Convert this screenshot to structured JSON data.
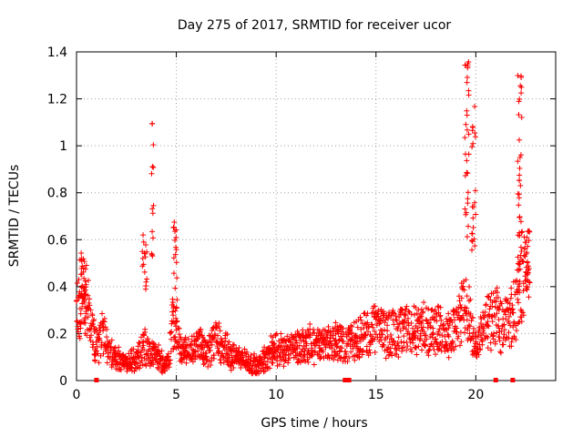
{
  "chart_data": {
    "type": "scatter",
    "title": "Day 275 of 2017, SRMTID for receiver ucor",
    "xlabel": "GPS time / hours",
    "ylabel": "SRMTID / TECUs",
    "xlim": [
      0,
      24
    ],
    "ylim": [
      0,
      1.4
    ],
    "grid": true,
    "marker": "+",
    "color": "#ff0000",
    "x_ticks": [
      0,
      5,
      10,
      15,
      20
    ],
    "x_tick_labels": [
      "0",
      "5",
      "10",
      "15",
      "20"
    ],
    "y_ticks": [
      0,
      0.2,
      0.4,
      0.6,
      0.8,
      1,
      1.2,
      1.4
    ],
    "y_tick_labels": [
      "0",
      "0.2",
      "0.4",
      "0.6",
      "0.8",
      "1",
      "1.2",
      "1.4"
    ],
    "profile": [
      [
        0.0,
        0.3
      ],
      [
        0.15,
        0.3
      ],
      [
        0.35,
        0.4
      ],
      [
        0.5,
        0.35
      ],
      [
        0.65,
        0.25
      ],
      [
        0.8,
        0.2
      ],
      [
        1.0,
        0.15
      ],
      [
        1.2,
        0.18
      ],
      [
        1.4,
        0.22
      ],
      [
        1.6,
        0.12
      ],
      [
        2.0,
        0.09
      ],
      [
        2.4,
        0.08
      ],
      [
        2.8,
        0.08
      ],
      [
        3.1,
        0.1
      ],
      [
        3.4,
        0.15
      ],
      [
        3.7,
        0.12
      ],
      [
        4.0,
        0.1
      ],
      [
        4.3,
        0.08
      ],
      [
        4.6,
        0.08
      ],
      [
        4.8,
        0.25
      ],
      [
        5.0,
        0.2
      ],
      [
        5.3,
        0.12
      ],
      [
        5.7,
        0.13
      ],
      [
        6.2,
        0.15
      ],
      [
        6.6,
        0.12
      ],
      [
        7.0,
        0.18
      ],
      [
        7.3,
        0.15
      ],
      [
        7.8,
        0.1
      ],
      [
        8.3,
        0.1
      ],
      [
        8.8,
        0.07
      ],
      [
        9.1,
        0.06
      ],
      [
        9.5,
        0.1
      ],
      [
        10.0,
        0.14
      ],
      [
        10.5,
        0.13
      ],
      [
        11.0,
        0.14
      ],
      [
        11.5,
        0.16
      ],
      [
        12.0,
        0.15
      ],
      [
        12.5,
        0.16
      ],
      [
        13.0,
        0.17
      ],
      [
        13.5,
        0.15
      ],
      [
        14.0,
        0.18
      ],
      [
        14.5,
        0.2
      ],
      [
        15.0,
        0.22
      ],
      [
        15.5,
        0.2
      ],
      [
        16.0,
        0.2
      ],
      [
        16.5,
        0.22
      ],
      [
        17.0,
        0.21
      ],
      [
        17.5,
        0.22
      ],
      [
        18.0,
        0.22
      ],
      [
        18.5,
        0.2
      ],
      [
        19.0,
        0.22
      ],
      [
        19.4,
        0.3
      ],
      [
        19.7,
        0.28
      ],
      [
        20.0,
        0.12
      ],
      [
        20.3,
        0.2
      ],
      [
        20.7,
        0.25
      ],
      [
        21.0,
        0.28
      ],
      [
        21.3,
        0.22
      ],
      [
        21.6,
        0.25
      ],
      [
        22.0,
        0.3
      ],
      [
        22.3,
        0.45
      ],
      [
        22.6,
        0.45
      ]
    ],
    "bursts": [
      {
        "x_center": 0.35,
        "width": 0.35,
        "y_from": 0.2,
        "y_to": 0.55,
        "points": 26
      },
      {
        "x_center": 3.4,
        "width": 0.25,
        "y_from": 0.35,
        "y_to": 0.65,
        "points": 16
      },
      {
        "x_center": 3.8,
        "width": 0.12,
        "y_from": 0.5,
        "y_to": 1.1,
        "points": 14
      },
      {
        "x_center": 4.95,
        "width": 0.2,
        "y_from": 0.3,
        "y_to": 0.7,
        "points": 20
      },
      {
        "x_center": 19.55,
        "width": 0.2,
        "y_from": 0.6,
        "y_to": 1.36,
        "points": 30
      },
      {
        "x_center": 19.9,
        "width": 0.2,
        "y_from": 0.55,
        "y_to": 1.18,
        "points": 22
      },
      {
        "x_center": 22.2,
        "width": 0.2,
        "y_from": 0.4,
        "y_to": 1.32,
        "points": 36
      },
      {
        "x_center": 22.6,
        "width": 0.15,
        "y_from": 0.4,
        "y_to": 0.65,
        "points": 14
      }
    ],
    "zero_markers_x": [
      1.0,
      13.45,
      13.65,
      21.0,
      21.85
    ],
    "x_end": 22.7,
    "y_max": 1.36
  }
}
